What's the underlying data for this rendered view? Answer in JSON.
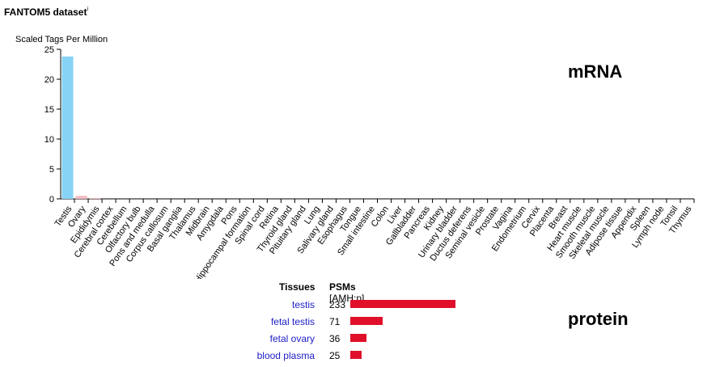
{
  "header": {
    "title": "FANTOM5 dataset",
    "info_marker": "i"
  },
  "labels": {
    "mrna": "mRNA",
    "protein": "protein"
  },
  "colors": {
    "bar_testis": "#87d3f5",
    "bar_other": "#f4b8c0",
    "protein_bar": "#e0102a",
    "link": "#2020c8"
  },
  "chart_data": {
    "type": "bar",
    "ylabel": "Scaled Tags Per Million",
    "ylim": [
      0,
      25
    ],
    "yticks": [
      0,
      5,
      10,
      15,
      20,
      25
    ],
    "categories": [
      "Testis",
      "Ovary",
      "Epididymis",
      "Cerebral cortex",
      "Cerebellum",
      "Olfactory bulb",
      "Pons and medulla",
      "Corpus callosum",
      "Basal ganglia",
      "Thalamus",
      "Midbrain",
      "Amygdala",
      "Pons",
      "Hippocampal formation",
      "Spinal cord",
      "Retina",
      "Thyroid gland",
      "Pituitary gland",
      "Lung",
      "Salivary gland",
      "Esophagus",
      "Tongue",
      "Small intestine",
      "Colon",
      "Liver",
      "Gallbladder",
      "Pancreas",
      "Kidney",
      "Urinary bladder",
      "Ductus deferens",
      "Seminal vesicle",
      "Prostate",
      "Vagina",
      "Endometrium",
      "Cervix",
      "Placenta",
      "Breast",
      "Heart muscle",
      "Smooth muscle",
      "Skeletal muscle",
      "Adipose tissue",
      "Appendix",
      "Spleen",
      "Lymph node",
      "Tonsil",
      "Thymus"
    ],
    "values": [
      23.8,
      0.5,
      0.15,
      0,
      0,
      0,
      0,
      0,
      0,
      0,
      0,
      0,
      0,
      0,
      0,
      0,
      0,
      0,
      0,
      0,
      0,
      0,
      0,
      0,
      0,
      0,
      0,
      0,
      0,
      0,
      0,
      0,
      0,
      0,
      0,
      0,
      0,
      0,
      0,
      0,
      0,
      0,
      0,
      0,
      0,
      0
    ]
  },
  "protein_table": {
    "header_tissue": "Tissues",
    "header_psm": "PSMs",
    "header_gene": "[AMH:p]",
    "max_value": 233,
    "rows": [
      {
        "tissue": "testis",
        "value": 233
      },
      {
        "tissue": "fetal testis",
        "value": 71
      },
      {
        "tissue": "fetal ovary",
        "value": 36
      },
      {
        "tissue": "blood plasma",
        "value": 25
      }
    ]
  }
}
